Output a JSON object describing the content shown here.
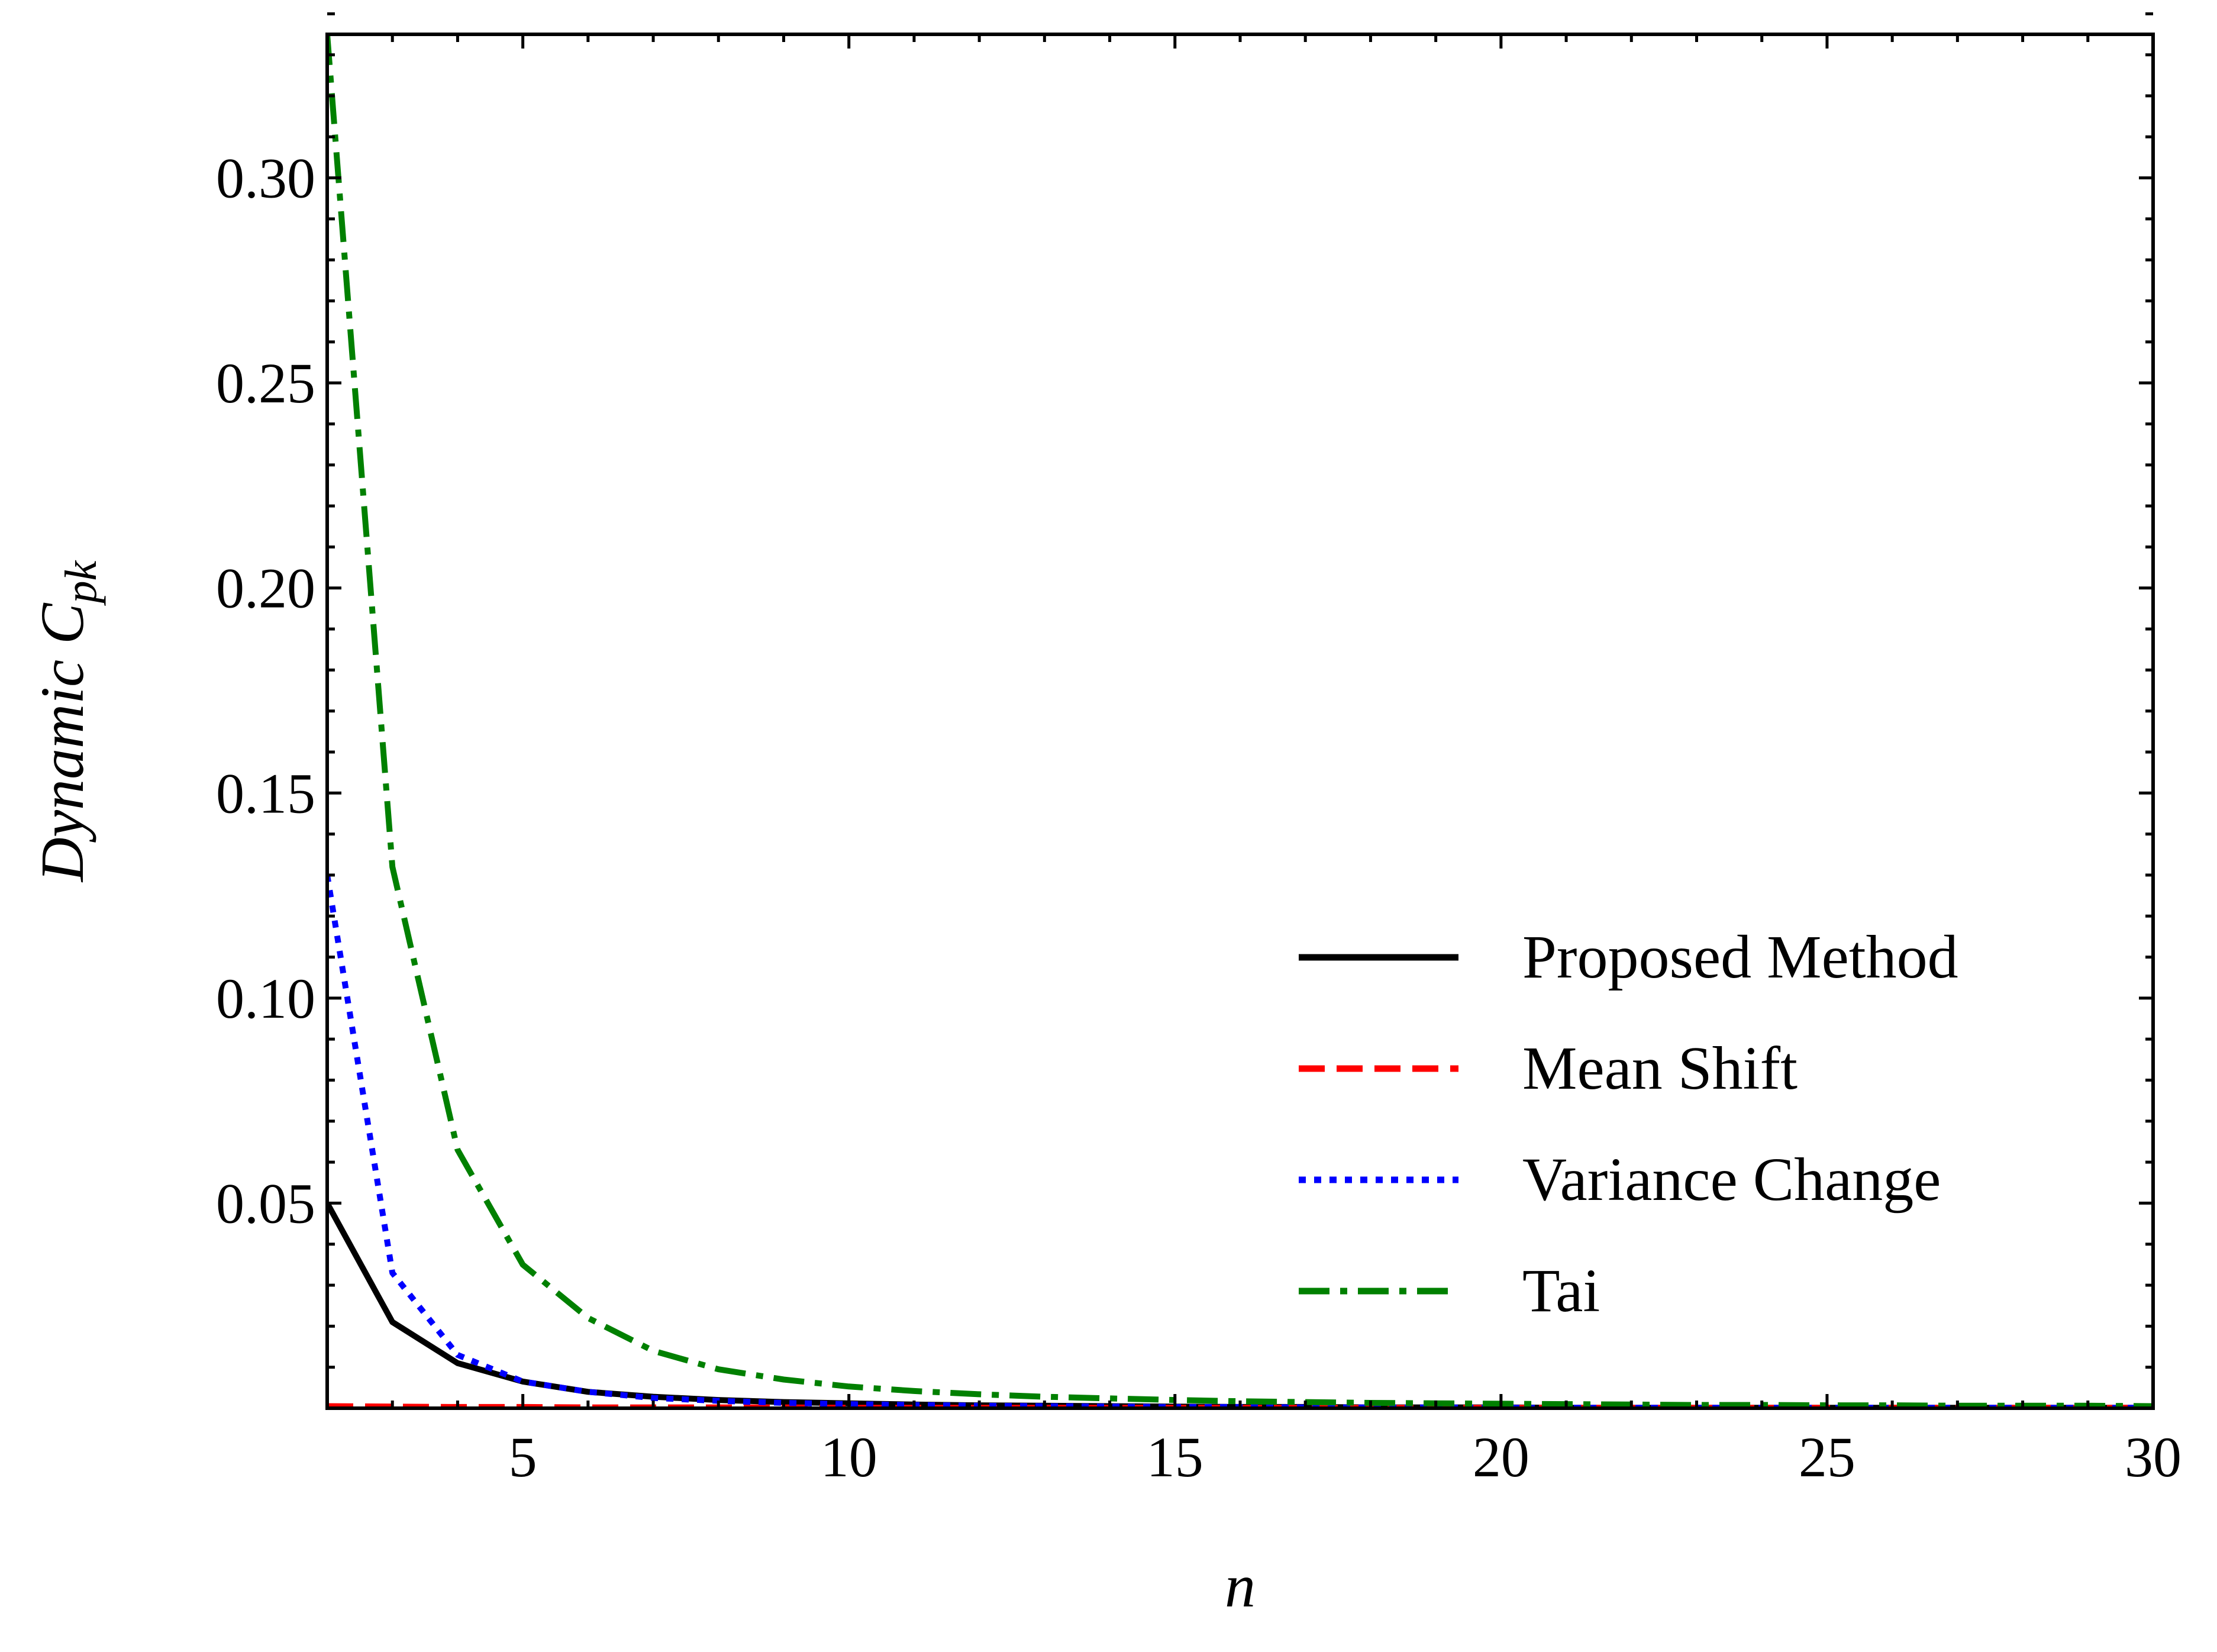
{
  "chart_data": {
    "type": "line",
    "xlabel": "n",
    "ylabel_main": "Dynamic ",
    "ylabel_var": "C",
    "ylabel_sub": "pk",
    "xlim": [
      2,
      30
    ],
    "ylim": [
      0,
      0.335
    ],
    "xticks": [
      5,
      10,
      15,
      20,
      25,
      30
    ],
    "yticks": [
      0.05,
      0.1,
      0.15,
      0.2,
      0.25,
      0.3
    ],
    "ytick_labels": [
      "0.05",
      "0.10",
      "0.15",
      "0.20",
      "0.25",
      "0.30"
    ],
    "xminor_step": 1,
    "yminor_step": 0.01,
    "grid": false,
    "legend_position": "lower-right",
    "series": [
      {
        "name": "Proposed Method",
        "color": "#000000",
        "dash": "solid",
        "x": [
          2,
          3,
          4,
          5,
          6,
          7,
          8,
          9,
          10,
          11,
          12,
          13,
          14,
          15,
          16,
          17,
          18,
          19,
          20,
          21,
          22,
          23,
          24,
          25,
          26,
          27,
          28,
          29,
          30
        ],
        "y": [
          0.05,
          0.021,
          0.011,
          0.0065,
          0.004,
          0.0028,
          0.002,
          0.0015,
          0.0012,
          0.0009,
          0.0007,
          0.0006,
          0.0005,
          0.0004,
          0.0003,
          0.0003,
          0.0002,
          0.0002,
          0.0002,
          0.0001,
          0.0001,
          0.0001,
          0.0001,
          0.0001,
          0.0001,
          0.0001,
          0.0001,
          0.0001,
          0.0001
        ]
      },
      {
        "name": "Mean Shift",
        "color": "#ff0000",
        "dash": "dashed",
        "x": [
          2,
          3,
          4,
          5,
          6,
          7,
          8,
          9,
          10,
          11,
          12,
          13,
          14,
          15,
          16,
          17,
          18,
          19,
          20,
          21,
          22,
          23,
          24,
          25,
          26,
          27,
          28,
          29,
          30
        ],
        "y": [
          0.0005,
          0.0004,
          0.0003,
          0.0003,
          0.0002,
          0.0002,
          0.0002,
          0.0002,
          0.0001,
          0.0001,
          0.0001,
          0.0001,
          0.0001,
          0.0001,
          0.0001,
          0.0001,
          0.0001,
          0.0001,
          0.0001,
          0.0001,
          0.0001,
          0.0001,
          0.0001,
          0.0001,
          0.0001,
          0.0001,
          0.0001,
          0.0001,
          0.0001
        ]
      },
      {
        "name": "Variance Change",
        "color": "#0000ff",
        "dash": "dotted",
        "x": [
          2,
          3,
          4,
          5,
          6,
          7,
          8,
          9,
          10,
          11,
          12,
          13,
          14,
          15,
          16,
          17,
          18,
          19,
          20,
          21,
          22,
          23,
          24,
          25,
          26,
          27,
          28,
          29,
          30
        ],
        "y": [
          0.13,
          0.033,
          0.013,
          0.0065,
          0.004,
          0.0025,
          0.0018,
          0.0013,
          0.001,
          0.0008,
          0.0006,
          0.0005,
          0.0004,
          0.0003,
          0.0003,
          0.0002,
          0.0002,
          0.0002,
          0.0001,
          0.0001,
          0.0001,
          0.0001,
          0.0001,
          0.0001,
          0.0001,
          0.0001,
          0.0001,
          0.0001,
          0.0001
        ]
      },
      {
        "name": "Tai",
        "color": "#008000",
        "dash": "dashdot",
        "x": [
          2,
          3,
          4,
          5,
          6,
          7,
          8,
          9,
          10,
          11,
          12,
          13,
          14,
          15,
          16,
          17,
          18,
          19,
          20,
          21,
          22,
          23,
          24,
          25,
          26,
          27,
          28,
          29,
          30
        ],
        "y": [
          0.335,
          0.132,
          0.063,
          0.035,
          0.022,
          0.014,
          0.0095,
          0.007,
          0.0053,
          0.0042,
          0.0034,
          0.0028,
          0.0024,
          0.002,
          0.0017,
          0.0015,
          0.0013,
          0.0012,
          0.0011,
          0.001,
          0.0009,
          0.0008,
          0.0008,
          0.0007,
          0.0007,
          0.0006,
          0.0006,
          0.0006,
          0.0005
        ]
      }
    ]
  }
}
